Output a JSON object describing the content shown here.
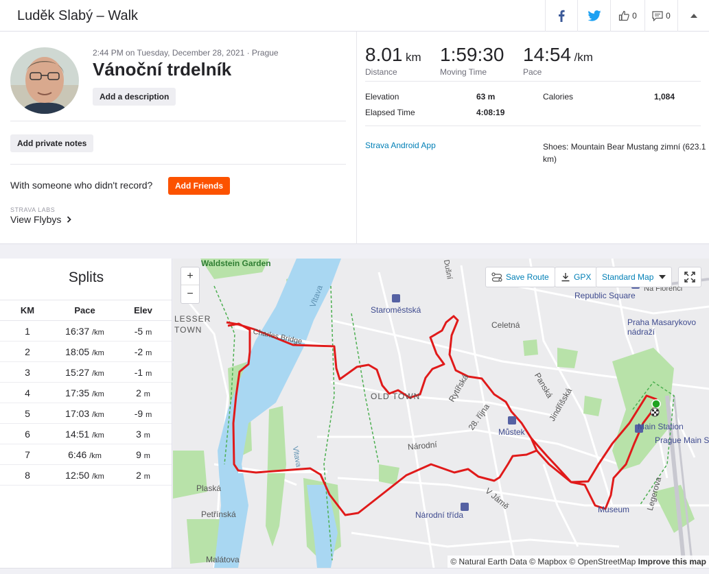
{
  "header": {
    "title": "Luděk Slabý – Walk",
    "kudos_count": "0",
    "comments_count": "0"
  },
  "activity": {
    "subtitle": "2:44 PM on Tuesday, December 28, 2021 · Prague",
    "name": "Vánoční trdelník",
    "add_description": "Add a description",
    "add_private_notes": "Add private notes",
    "with_someone": "With someone who didn't record?",
    "add_friends": "Add Friends",
    "labs_label": "STRAVA LABS",
    "view_flybys": "View Flybys"
  },
  "stats": {
    "distance": {
      "value": "8.01",
      "unit": "km",
      "label": "Distance"
    },
    "moving_time": {
      "value": "1:59:30",
      "label": "Moving Time"
    },
    "pace": {
      "value": "14:54",
      "unit": "/km",
      "label": "Pace"
    },
    "elevation": {
      "label": "Elevation",
      "value": "63 m"
    },
    "calories": {
      "label": "Calories",
      "value": "1,084"
    },
    "elapsed": {
      "label": "Elapsed Time",
      "value": "4:08:19"
    },
    "device": "Strava Android App",
    "shoes": "Shoes: Mountain Bear Mustang zimní (623.1 km)"
  },
  "splits": {
    "title": "Splits",
    "headers": [
      "KM",
      "Pace",
      "Elev"
    ],
    "pace_unit": "/km",
    "elev_unit": "m",
    "rows": [
      {
        "km": "1",
        "pace": "16:37",
        "elev": "-5"
      },
      {
        "km": "2",
        "pace": "18:05",
        "elev": "-2"
      },
      {
        "km": "3",
        "pace": "15:27",
        "elev": "-1"
      },
      {
        "km": "4",
        "pace": "17:35",
        "elev": "2"
      },
      {
        "km": "5",
        "pace": "17:03",
        "elev": "-9"
      },
      {
        "km": "6",
        "pace": "14:51",
        "elev": "3"
      },
      {
        "km": "7",
        "pace": "6:46",
        "elev": "9"
      },
      {
        "km": "8",
        "pace": "12:50",
        "elev": "2"
      }
    ]
  },
  "map": {
    "zoom_in": "+",
    "zoom_out": "−",
    "save_route": "Save Route",
    "gpx": "GPX",
    "map_style": "Standard Map",
    "route_color": "#e01a1a",
    "water_color": "#a9d7f2",
    "park_color": "#b8e2a9",
    "labels": {
      "waldstein": "Waldstein Garden",
      "lesser_town": "LESSER\nTOWN",
      "staromestska": "Staroměstská",
      "celetna": "Celetná",
      "republic_square": "Republic Square",
      "na_florenci": "Na Florenci",
      "praha_masarykovo": "Praha Masarykovo\nnádraží",
      "old_town": "OLD TOWN",
      "vltava1": "Vltava",
      "vltava2": "Vltava",
      "charles_bridge": "Charles Bridge",
      "rytirska": "Rytířská",
      "rijna": "28. října",
      "mustek": "Můstek",
      "panska": "Panská",
      "jindrisska": "Jindřišská",
      "main_station": "Main Station",
      "prague_main": "Prague Main St",
      "narodni": "Národní",
      "narodni_trida": "Národní třída",
      "v_jame": "V Jámě",
      "legerova": "Legerova",
      "museum": "Museum",
      "plaska": "Plaská",
      "petrinska": "Petřínská",
      "malatova": "Malátova",
      "dusni": "Dušní"
    },
    "attribution": "© Natural Earth Data © Mapbox © OpenStreetMap",
    "improve": "Improve this map"
  }
}
